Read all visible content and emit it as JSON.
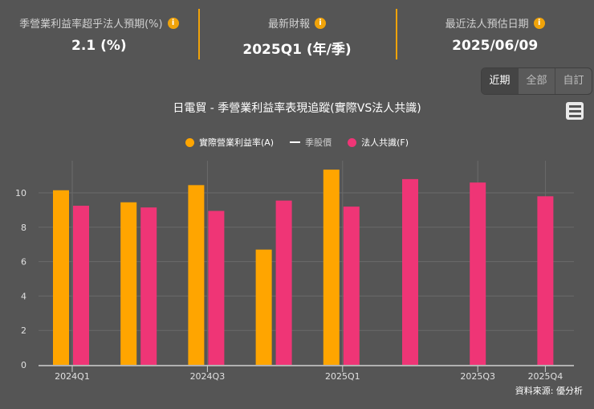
{
  "kpis": [
    {
      "label": "季營業利益率超乎法人預期(%)",
      "value": "2.1 (%)",
      "icon": "info-icon"
    },
    {
      "label": "最新財報",
      "value": "2025Q1 (年/季)",
      "icon": "info-icon"
    },
    {
      "label": "最近法人預估日期",
      "value": "2025/06/09",
      "icon": "info-icon"
    }
  ],
  "range_buttons": [
    {
      "label": "近期",
      "active": true
    },
    {
      "label": "全部",
      "active": false
    },
    {
      "label": "自訂",
      "active": false
    }
  ],
  "menu_icon": "hamburger-menu-icon",
  "legend": [
    {
      "label": "實際營業利益率(A)",
      "color": "#ffa500",
      "type": "dot"
    },
    {
      "label": "季股價",
      "color": "#ffffff",
      "type": "line"
    },
    {
      "label": "法人共識(F)",
      "color": "#ef3576",
      "type": "dot"
    }
  ],
  "source": "資料來源: 優分析",
  "colors": {
    "actual": "#ffa500",
    "consensus": "#ef3576",
    "accent": "#f0a30a",
    "background": "#555555"
  },
  "chart_data": {
    "type": "bar",
    "title": "日電貿 - 季營業利益率表現追蹤(實際VS法人共識)",
    "xlabel": "",
    "ylabel": "",
    "categories": [
      "2024Q1",
      "2024Q2",
      "2024Q3",
      "2024Q4",
      "2025Q1",
      "2025Q2",
      "2025Q3",
      "2025Q4"
    ],
    "x_tick_labels": [
      "2024Q1",
      "2024Q3",
      "2025Q1",
      "2025Q3",
      "2025Q4"
    ],
    "series": [
      {
        "name": "實際營業利益率(A)",
        "color": "#ffa500",
        "values": [
          10.15,
          9.45,
          10.45,
          6.7,
          11.35,
          null,
          null,
          null
        ]
      },
      {
        "name": "法人共識(F)",
        "color": "#ef3576",
        "values": [
          9.25,
          9.15,
          8.95,
          9.55,
          9.2,
          10.8,
          10.6,
          9.8
        ]
      }
    ],
    "yticks": [
      0,
      2,
      4,
      6,
      8,
      10
    ],
    "ylim": [
      0,
      12
    ],
    "grid": true,
    "legend_position": "top"
  }
}
